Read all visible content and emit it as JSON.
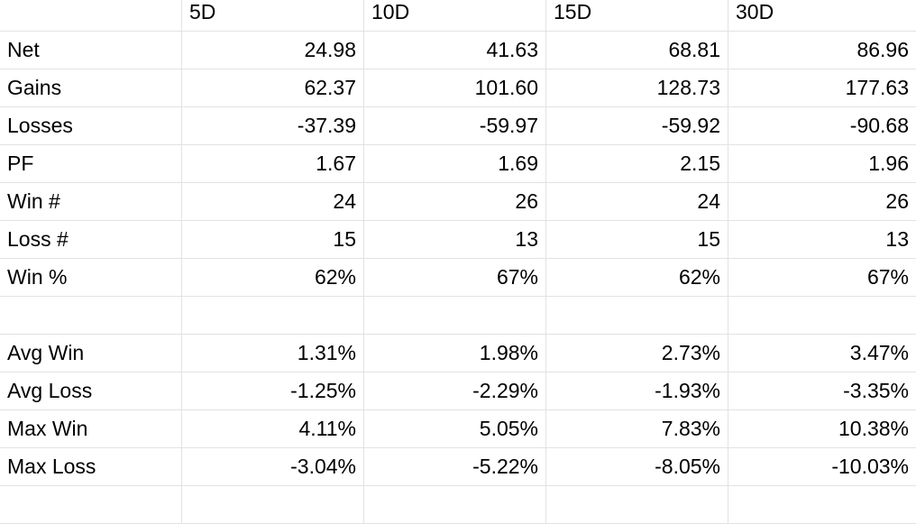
{
  "sheet": {
    "headers": [
      "",
      "5D",
      "10D",
      "15D",
      "30D"
    ],
    "rows": [
      {
        "label": "Net",
        "values": [
          "24.98",
          "41.63",
          "68.81",
          "86.96"
        ]
      },
      {
        "label": "Gains",
        "values": [
          "62.37",
          "101.60",
          "128.73",
          "177.63"
        ]
      },
      {
        "label": "Losses",
        "values": [
          "-37.39",
          "-59.97",
          "-59.92",
          "-90.68"
        ]
      },
      {
        "label": "PF",
        "values": [
          "1.67",
          "1.69",
          "2.15",
          "1.96"
        ]
      },
      {
        "label": "Win #",
        "values": [
          "24",
          "26",
          "24",
          "26"
        ]
      },
      {
        "label": "Loss #",
        "values": [
          "15",
          "13",
          "15",
          "13"
        ]
      },
      {
        "label": "Win %",
        "values": [
          "62%",
          "67%",
          "62%",
          "67%"
        ]
      },
      {
        "label": "",
        "values": [
          "",
          "",
          "",
          ""
        ]
      },
      {
        "label": "Avg Win",
        "values": [
          "1.31%",
          "1.98%",
          "2.73%",
          "3.47%"
        ]
      },
      {
        "label": "Avg Loss",
        "values": [
          "-1.25%",
          "-2.29%",
          "-1.93%",
          "-3.35%"
        ]
      },
      {
        "label": "Max Win",
        "values": [
          "4.11%",
          "5.05%",
          "7.83%",
          "10.38%"
        ]
      },
      {
        "label": "Max Loss",
        "values": [
          "-3.04%",
          "-5.22%",
          "-8.05%",
          "-10.03%"
        ]
      }
    ]
  }
}
